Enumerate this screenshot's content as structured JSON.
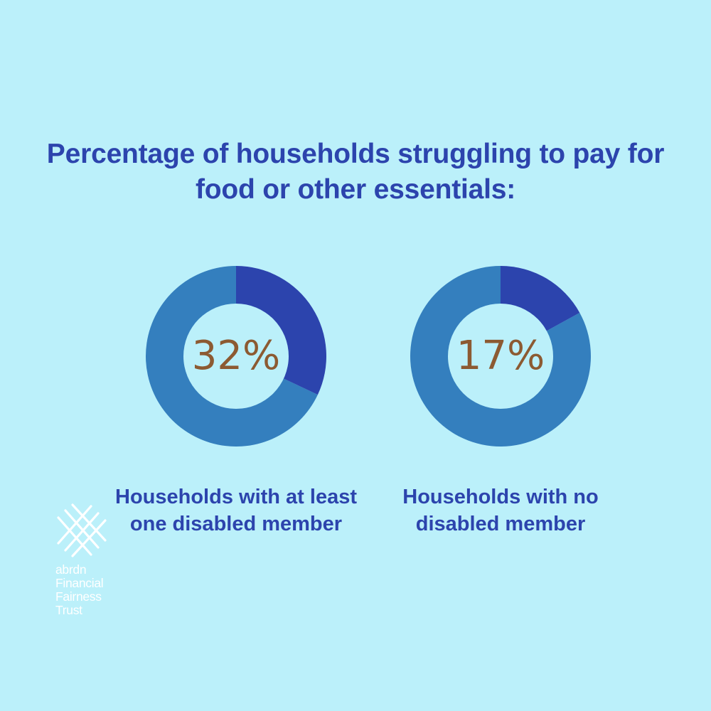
{
  "chart_data": {
    "type": "pie",
    "title": "Percentage of households struggling to pay for food or other essentials:",
    "unit": "%",
    "charts": [
      {
        "label": "Households with at least one disabled member",
        "value": 32,
        "value_label": "32%"
      },
      {
        "label": "Households with no disabled member",
        "value": 17,
        "value_label": "17%"
      }
    ]
  },
  "colors": {
    "background": "#bbf0fa",
    "ring_highlight": "#2c44ad",
    "ring_rest": "#347fbe",
    "center_fill": "#bbf0fa",
    "value_text": "#8c5a32",
    "heading_text": "#2c44ad"
  },
  "logo": {
    "icon": "crossed-lines-logo-icon",
    "lines": [
      "abrdn",
      "Financial",
      "Fairness",
      "Trust"
    ]
  }
}
